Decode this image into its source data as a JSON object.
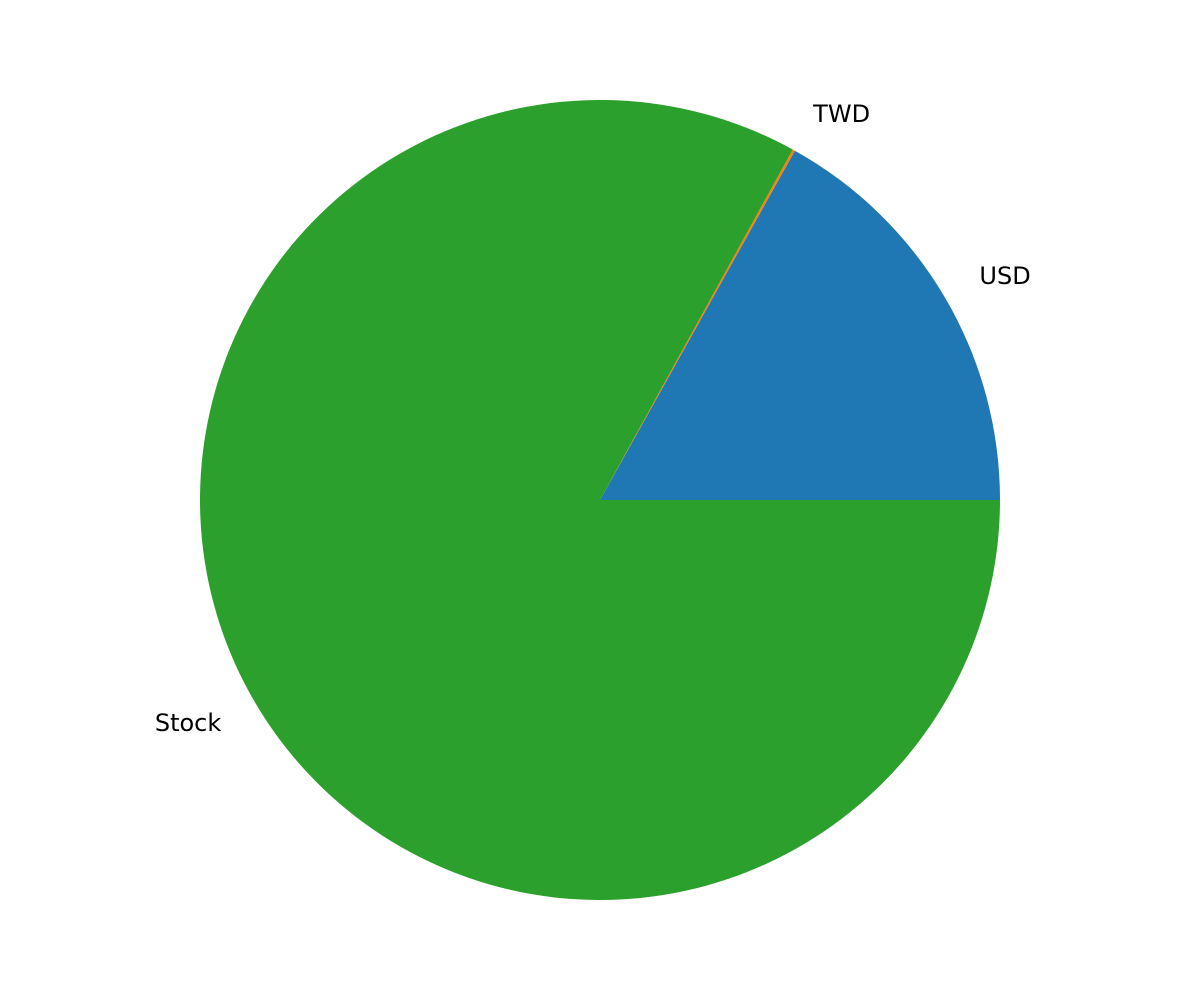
{
  "chart_data": {
    "type": "pie",
    "labels": [
      "USD",
      "TWD",
      "Stock"
    ],
    "values": [
      16.9,
      0.1,
      83.0
    ],
    "colors": [
      "#1f77b4",
      "#ff7f0e",
      "#2ca02c"
    ],
    "start_angle": 0,
    "direction": "counterclockwise"
  }
}
